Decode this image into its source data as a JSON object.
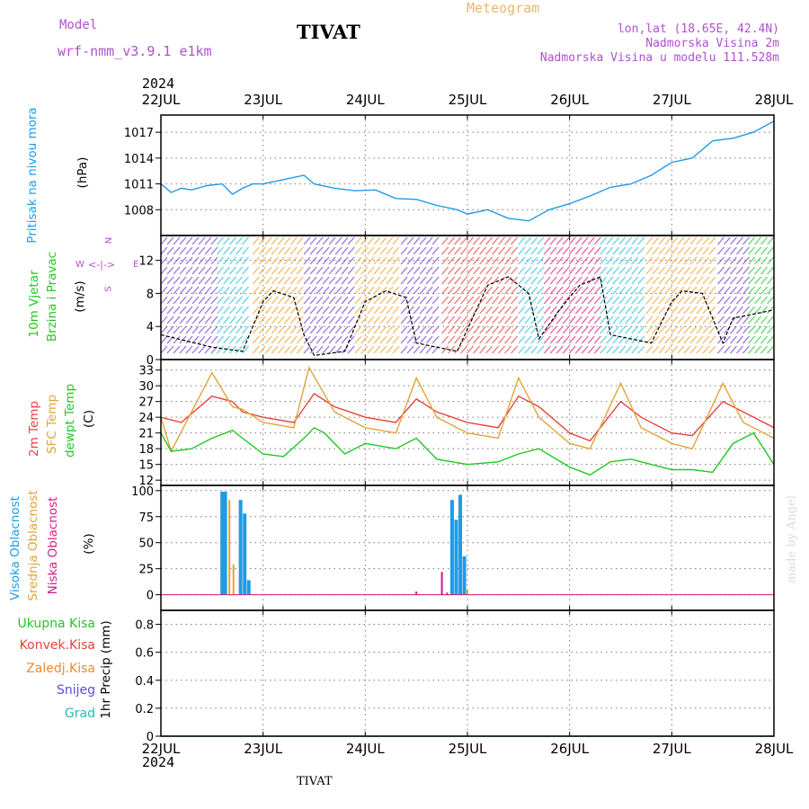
{
  "header": {
    "model_label": "Model",
    "model_name": "wrf-nmm_v3.9.1 e1km",
    "title": "TIVAT",
    "meteogram": "Meteogram",
    "lonlat": "lon,lat (18.65E, 42.4N)",
    "elev": "Nadmorska Visina 2m",
    "model_elev": "Nadmorska Visina u modelu 111.528m",
    "footer": "TIVAT",
    "credit": "made by Angel",
    "year": "2024"
  },
  "colors": {
    "pressure": "#1e9be6",
    "temp2m": "#e8413c",
    "sfc": "#e2a437",
    "dewpt": "#1fc81f",
    "cloud_high": "#1e9be6",
    "cloud_mid": "#e2a437",
    "cloud_low": "#d6198a",
    "ukupna": "#29c329",
    "konvek": "#e8413c",
    "zaledj": "#f08a2c",
    "snijeg": "#5a4fd6",
    "grad": "#2bb9b1",
    "header": "#b050d0",
    "meteo": "#e8b868"
  },
  "panel_labels": {
    "pressure": [
      "Pritisak na nivou mora",
      "(hPa)"
    ],
    "wind": [
      "10m Vjetar",
      "Brzina i Pravac",
      "(m/s)"
    ],
    "compass": [
      "N",
      "W",
      "E",
      "S"
    ],
    "temp": [
      "2m Temp",
      "SFC Temp",
      "dewpt Temp",
      "(C)"
    ],
    "cloud": [
      "Visoka Oblacnost",
      "Srednja Oblacnost",
      "Niska Oblacnost",
      "(%)"
    ],
    "precip": [
      "Ukupna Kisa",
      "Konvek.Kisa",
      "Zaledj.Kisa",
      "Snijeg",
      "Grad",
      "1hr Precip (mm)"
    ]
  },
  "chart_data": [
    {
      "type": "line",
      "panel": "pressure",
      "x_labels": [
        "22JUL",
        "23JUL",
        "24JUL",
        "25JUL",
        "26JUL",
        "27JUL",
        "28JUL"
      ],
      "yticks": [
        1008,
        1011,
        1014,
        1017
      ],
      "ylim": [
        1005,
        1019
      ],
      "series": [
        {
          "x": [
            0,
            0.1,
            0.2,
            0.3,
            0.45,
            0.6,
            0.7,
            0.8,
            0.9,
            1.0,
            1.2,
            1.4,
            1.5,
            1.7,
            1.9,
            2.1,
            2.3,
            2.5,
            2.7,
            2.9,
            3.0,
            3.2,
            3.4,
            3.6,
            3.8,
            4.0,
            4.2,
            4.4,
            4.6,
            4.8,
            5.0,
            5.2,
            5.4,
            5.6,
            5.8,
            6.0
          ],
          "y": [
            1011,
            1010,
            1010.5,
            1010.3,
            1010.8,
            1011,
            1009.8,
            1010.5,
            1011,
            1011,
            1011.5,
            1012,
            1011,
            1010.5,
            1010.2,
            1010.3,
            1009.3,
            1009.2,
            1008.5,
            1008,
            1007.5,
            1008,
            1007,
            1006.7,
            1008,
            1008.7,
            1009.6,
            1010.6,
            1011,
            1012,
            1013.5,
            1014,
            1016,
            1016.3,
            1017,
            1018.3
          ]
        }
      ]
    },
    {
      "type": "line",
      "panel": "wind",
      "x_labels": [
        "22JUL",
        "23JUL",
        "24JUL",
        "25JUL",
        "26JUL",
        "27JUL",
        "28JUL"
      ],
      "yticks": [
        0,
        4,
        8,
        12
      ],
      "ylim": [
        0,
        15
      ],
      "series": [
        {
          "x": [
            0,
            0.5,
            0.8,
            1.0,
            1.1,
            1.3,
            1.4,
            1.5,
            1.8,
            2.0,
            2.2,
            2.4,
            2.5,
            2.9,
            3.2,
            3.4,
            3.6,
            3.7,
            3.9,
            4.1,
            4.3,
            4.4,
            4.8,
            5.0,
            5.1,
            5.3,
            5.5,
            5.6,
            6.0
          ],
          "y": [
            3,
            1.5,
            1,
            7,
            8.3,
            7.5,
            3,
            0.5,
            1,
            7,
            8.3,
            7.5,
            2,
            1,
            9,
            10,
            8,
            2.5,
            6,
            9,
            10,
            3,
            2,
            7,
            8.3,
            8,
            2,
            5,
            6
          ]
        }
      ]
    },
    {
      "type": "line",
      "panel": "temperature",
      "x_labels": [
        "22JUL",
        "23JUL",
        "24JUL",
        "25JUL",
        "26JUL",
        "27JUL",
        "28JUL"
      ],
      "yticks": [
        12,
        15,
        18,
        21,
        24,
        27,
        30,
        33
      ],
      "ylim": [
        11,
        35
      ],
      "series": [
        {
          "name": "2m Temp",
          "x": [
            0,
            0.2,
            0.5,
            0.7,
            0.8,
            1.0,
            1.3,
            1.5,
            1.7,
            2.0,
            2.3,
            2.5,
            2.7,
            3.0,
            3.3,
            3.5,
            3.7,
            4.0,
            4.2,
            4.5,
            4.7,
            5.0,
            5.2,
            5.5,
            5.7,
            6.0
          ],
          "y": [
            24,
            23,
            28,
            27,
            25,
            24,
            23,
            28.5,
            26,
            24,
            23,
            27.5,
            25,
            23,
            22,
            28,
            26,
            21,
            19.5,
            27,
            24,
            21,
            20.5,
            27,
            25,
            22
          ]
        },
        {
          "name": "SFC Temp",
          "x": [
            0,
            0.1,
            0.5,
            0.7,
            0.8,
            1.0,
            1.3,
            1.45,
            1.7,
            2.0,
            2.3,
            2.5,
            2.7,
            3.0,
            3.3,
            3.5,
            3.7,
            4.0,
            4.2,
            4.5,
            4.7,
            5.0,
            5.2,
            5.5,
            5.7,
            6.0
          ],
          "y": [
            24,
            17.5,
            32.5,
            26,
            25.5,
            23,
            22,
            33.5,
            25,
            22,
            21,
            31.5,
            24,
            21,
            20,
            31.5,
            24,
            19,
            18,
            30.5,
            22,
            19,
            18,
            30.5,
            23,
            20
          ]
        },
        {
          "name": "dewpt Temp",
          "x": [
            0,
            0.1,
            0.3,
            0.5,
            0.7,
            0.8,
            1.0,
            1.2,
            1.4,
            1.5,
            1.6,
            1.8,
            2.0,
            2.3,
            2.5,
            2.7,
            3.0,
            3.3,
            3.5,
            3.7,
            4.0,
            4.2,
            4.4,
            4.6,
            4.8,
            5.0,
            5.2,
            5.4,
            5.6,
            5.8,
            6.0
          ],
          "y": [
            21,
            17.5,
            18,
            20,
            21.5,
            20,
            17,
            16.5,
            20,
            22,
            21,
            17,
            19,
            18,
            20,
            16,
            15,
            15.5,
            17,
            18,
            14.5,
            13,
            15.5,
            16,
            15,
            14,
            14,
            13.5,
            19,
            21,
            15
          ]
        }
      ]
    },
    {
      "type": "bar",
      "panel": "cloud",
      "x_labels": [
        "22JUL",
        "23JUL",
        "24JUL",
        "25JUL",
        "26JUL",
        "27JUL",
        "28JUL"
      ],
      "yticks": [
        0,
        25,
        50,
        75,
        100
      ],
      "ylim": [
        -15,
        105
      ],
      "series": [
        {
          "name": "Visoka Oblacnost",
          "x": [
            0.6,
            0.63,
            0.78,
            0.82,
            0.86,
            2.85,
            2.89,
            2.93,
            2.97
          ],
          "values": [
            99,
            99,
            91,
            78,
            14,
            91,
            72,
            96,
            37
          ]
        },
        {
          "name": "Srednja Oblacnost",
          "x": [
            0.67,
            0.71,
            3.0
          ],
          "values": [
            91,
            29,
            5
          ]
        },
        {
          "name": "Niska Oblacnost",
          "x": [
            2.5,
            2.75,
            2.8
          ],
          "values": [
            3,
            22,
            2
          ]
        }
      ]
    },
    {
      "type": "line",
      "panel": "precip",
      "x_labels": [
        "22JUL",
        "23JUL",
        "24JUL",
        "25JUL",
        "26JUL",
        "27JUL",
        "28JUL"
      ],
      "yticks": [
        0,
        0.2,
        0.4,
        0.6,
        0.8
      ],
      "ylim": [
        0,
        0.9
      ],
      "series": [
        {
          "name": "Ukupna Kisa",
          "x": [
            0,
            6
          ],
          "y": [
            0,
            0
          ]
        }
      ]
    }
  ]
}
